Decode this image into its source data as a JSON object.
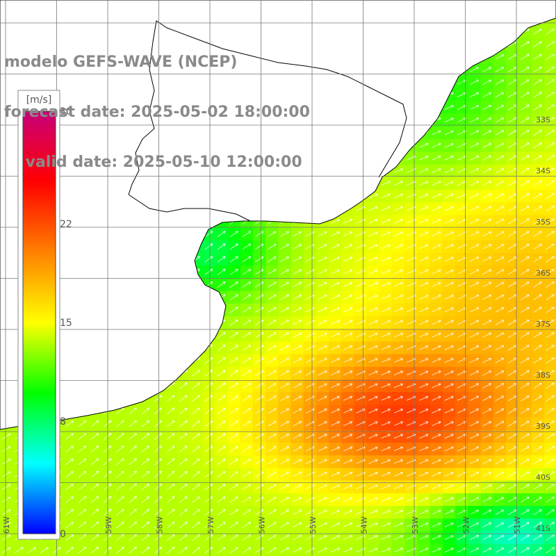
{
  "title": {
    "line1": "modelo GEFS-WAVE (NCEP)",
    "line2": "forecast date: 2025-05-02 18:00:00",
    "line3": "    valid date: 2025-05-10 12:00:00"
  },
  "colorbar": {
    "unit": "[m/s]",
    "ticks": [
      "30",
      "22",
      "15",
      "8",
      "0"
    ],
    "tick_values": [
      30,
      22,
      15,
      8,
      0
    ],
    "min": 0,
    "max": 30,
    "colors": [
      "#0000ff",
      "#00ffff",
      "#00ff00",
      "#ffff00",
      "#ff8000",
      "#ff0000",
      "#c8007a"
    ]
  },
  "lat_labels": [
    "33S",
    "34S",
    "35S",
    "36S",
    "37S",
    "38S",
    "39S",
    "40S",
    "41S"
  ],
  "lon_labels": [
    "61W",
    "60W",
    "59W",
    "58W",
    "57W",
    "56W",
    "55W",
    "54W",
    "53W",
    "52W",
    "51W"
  ],
  "colors": {
    "land": "#ffffff",
    "coastline": "#000000",
    "grid": "#777777",
    "arrows": "#ffffff"
  }
}
